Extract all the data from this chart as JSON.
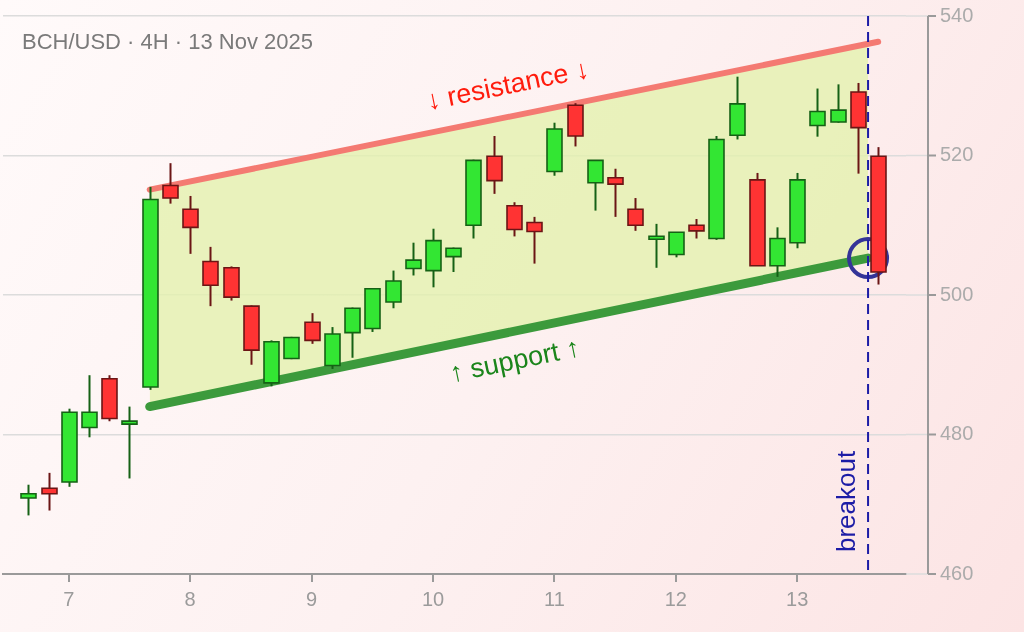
{
  "chart_data": {
    "type": "candlestick",
    "title": "BCH/USD · 4H · 13 Nov 2025",
    "x": [
      "2025-11-06T16:00",
      "2025-11-06T20:00",
      "2025-11-07T00:00",
      "2025-11-07T04:00",
      "2025-11-07T08:00",
      "2025-11-07T12:00",
      "2025-11-07T16:00",
      "2025-11-07T20:00",
      "2025-11-08T00:00",
      "2025-11-08T04:00",
      "2025-11-08T08:00",
      "2025-11-08T12:00",
      "2025-11-08T16:00",
      "2025-11-08T20:00",
      "2025-11-09T00:00",
      "2025-11-09T04:00",
      "2025-11-09T08:00",
      "2025-11-09T12:00",
      "2025-11-09T16:00",
      "2025-11-09T20:00",
      "2025-11-10T00:00",
      "2025-11-10T04:00",
      "2025-11-10T08:00",
      "2025-11-10T12:00",
      "2025-11-10T16:00",
      "2025-11-10T20:00",
      "2025-11-11T00:00",
      "2025-11-11T04:00",
      "2025-11-11T08:00",
      "2025-11-11T12:00",
      "2025-11-11T16:00",
      "2025-11-11T20:00",
      "2025-11-12T00:00",
      "2025-11-12T04:00",
      "2025-11-12T08:00",
      "2025-11-12T12:00",
      "2025-11-12T16:00",
      "2025-11-12T20:00",
      "2025-11-13T00:00",
      "2025-11-13T04:00",
      "2025-11-13T08:00",
      "2025-11-13T12:00",
      "2025-11-13T16:00"
    ],
    "ohlc": [
      [
        470.9,
        472.8,
        468.4,
        471.5
      ],
      [
        472.3,
        474.5,
        469.1,
        471.5
      ],
      [
        473.2,
        483.7,
        472.5,
        483.2
      ],
      [
        481.0,
        488.5,
        479.6,
        483.2
      ],
      [
        488.0,
        488.5,
        481.9,
        482.3
      ],
      [
        481.6,
        484.0,
        473.7,
        481.8
      ],
      [
        486.8,
        515.5,
        486.4,
        513.7
      ],
      [
        515.7,
        518.9,
        513.1,
        513.9
      ],
      [
        512.3,
        514.2,
        505.9,
        509.7
      ],
      [
        504.8,
        506.9,
        498.4,
        501.4
      ],
      [
        503.9,
        504.1,
        499.2,
        499.7
      ],
      [
        498.4,
        498.5,
        490.0,
        492.1
      ],
      [
        487.4,
        493.5,
        486.9,
        493.3
      ],
      [
        490.9,
        494.0,
        490.8,
        493.9
      ],
      [
        496.1,
        497.4,
        493.0,
        493.5
      ],
      [
        489.9,
        495.4,
        489.4,
        494.4
      ],
      [
        494.6,
        498.2,
        491.0,
        498.1
      ],
      [
        495.2,
        501.0,
        494.7,
        500.9
      ],
      [
        499.0,
        503.5,
        498.1,
        502.0
      ],
      [
        503.8,
        507.5,
        502.8,
        505.0
      ],
      [
        503.5,
        509.5,
        501.1,
        507.8
      ],
      [
        505.5,
        506.8,
        503.3,
        506.7
      ],
      [
        510.0,
        519.4,
        508.1,
        519.3
      ],
      [
        519.9,
        522.8,
        514.5,
        516.4
      ],
      [
        512.8,
        513.3,
        508.4,
        509.4
      ],
      [
        510.4,
        511.2,
        504.5,
        509.1
      ],
      [
        517.7,
        524.7,
        517.1,
        523.8
      ],
      [
        527.2,
        527.5,
        521.3,
        522.8
      ],
      [
        516.1,
        519.3,
        512.1,
        519.3
      ],
      [
        516.8,
        518.1,
        511.2,
        515.9
      ],
      [
        512.3,
        513.9,
        509.2,
        510.0
      ],
      [
        508.1,
        510.2,
        503.9,
        508.3
      ],
      [
        505.8,
        509.0,
        505.4,
        509.0
      ],
      [
        510.0,
        510.9,
        508.1,
        509.2
      ],
      [
        508.1,
        522.8,
        507.9,
        522.3
      ],
      [
        522.9,
        531.3,
        522.3,
        527.4
      ],
      [
        516.5,
        517.5,
        504.2,
        504.2
      ],
      [
        504.2,
        509.7,
        502.6,
        508.1
      ],
      [
        507.5,
        517.5,
        506.7,
        516.5
      ],
      [
        524.3,
        529.6,
        522.7,
        526.3
      ],
      [
        524.8,
        530.2,
        524.7,
        526.5
      ],
      [
        529.1,
        530.4,
        517.4,
        524.0
      ],
      [
        519.9,
        521.2,
        501.5,
        503.3
      ]
    ],
    "colors": [
      "#33e633",
      "#ff3333",
      "#33e633",
      "#33e633",
      "#ff3333",
      "#33e633",
      "#33e633",
      "#ff3333",
      "#ff3333",
      "#ff3333",
      "#ff3333",
      "#ff3333",
      "#33e633",
      "#33e633",
      "#ff3333",
      "#33e633",
      "#33e633",
      "#33e633",
      "#33e633",
      "#33e633",
      "#33e633",
      "#33e633",
      "#33e633",
      "#ff3333",
      "#ff3333",
      "#ff3333",
      "#33e633",
      "#ff3333",
      "#33e633",
      "#ff3333",
      "#ff3333",
      "#33e633",
      "#33e633",
      "#ff3333",
      "#33e633",
      "#33e633",
      "#ff3333",
      "#33e633",
      "#33e633",
      "#33e633",
      "#33e633",
      "#ff3333",
      "#ff3333"
    ],
    "series": [
      {
        "type": "area",
        "x": [
          "2025-11-07T16:00",
          "2025-11-13T14:00"
        ],
        "values": [
          515.1,
          536.0
        ],
        "color": "#e3f1ae"
      },
      {
        "type": "line",
        "name": "↓ resistance ↓",
        "x": [
          "2025-11-07T16:00",
          "2025-11-13T16:00"
        ],
        "values": [
          515.1,
          536.3
        ],
        "color": "#f47a72"
      },
      {
        "type": "line",
        "name": "↑ support ↑",
        "x": [
          "2025-11-07T16:00",
          "2025-11-13T14:00"
        ],
        "values": [
          484.0,
          505.3
        ],
        "color": "#3c9a3c"
      },
      {
        "type": "scatter",
        "x": [
          "2025-11-13T14:00"
        ],
        "values": [
          505.3
        ],
        "color": "#343498",
        "marker": "circle"
      }
    ],
    "xlim": [
      "2025-11-06T11:00",
      "2025-11-13T21:30"
    ],
    "xticks": [
      {
        "value": "2025-11-07T00:00",
        "label": "7"
      },
      {
        "value": "2025-11-08T00:00",
        "label": "8"
      },
      {
        "value": "2025-11-09T00:00",
        "label": "9"
      },
      {
        "value": "2025-11-10T00:00",
        "label": "10"
      },
      {
        "value": "2025-11-11T00:00",
        "label": "11"
      },
      {
        "value": "2025-11-12T00:00",
        "label": "12"
      },
      {
        "value": "2025-11-13T00:00",
        "label": "13"
      }
    ],
    "ylim": [
      460,
      540
    ],
    "yticks": [
      460,
      480,
      500,
      520,
      540
    ],
    "grid": "y",
    "ref_lines": [
      {
        "axis": "x",
        "value": "2025-11-13T14:00",
        "label": "breakout",
        "color": "#1c1ca6",
        "line_style": "dashed"
      }
    ]
  }
}
